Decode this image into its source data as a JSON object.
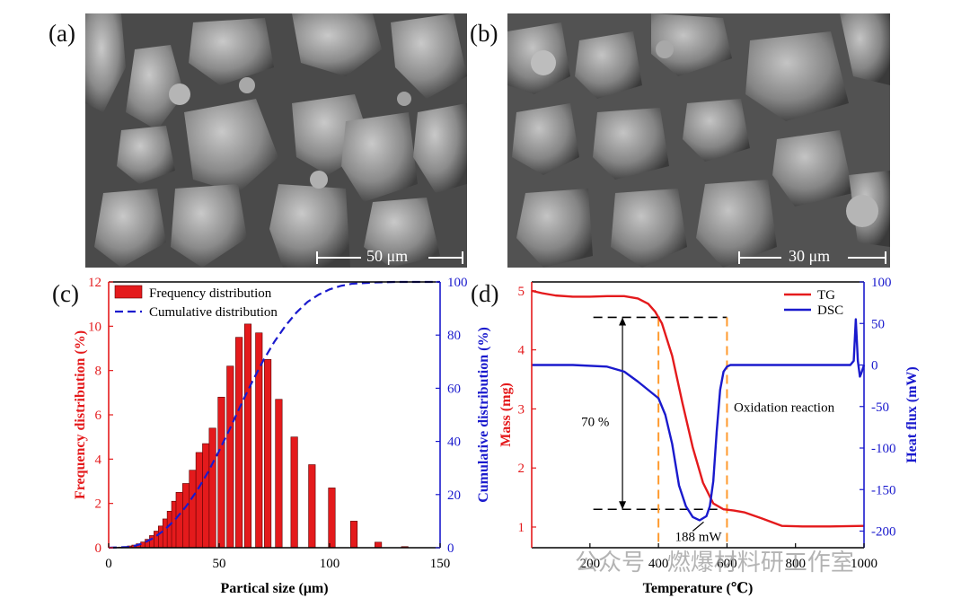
{
  "panels": {
    "a": {
      "label": "(a)",
      "scale_bar": "50 μm"
    },
    "b": {
      "label": "(b)",
      "scale_bar": "30 μm"
    },
    "c": {
      "label": "(c)"
    },
    "d": {
      "label": "(d)"
    }
  },
  "watermark": "公众号 · 燃爆材料研工作室",
  "colors": {
    "red": "#e41a1c",
    "blue": "#1a1acd",
    "orange": "#ff9a2e",
    "black": "#000000"
  },
  "chart_data": [
    {
      "id": "c",
      "type": "bar",
      "xlabel": "Partical size (μm)",
      "ylabel": "Frequency distribution (%)",
      "y2label": "Cumulative distribution (%)",
      "xlim": [
        0,
        150
      ],
      "ylim": [
        0,
        12
      ],
      "y2lim": [
        0,
        100
      ],
      "xticks": [
        0,
        50,
        100,
        150
      ],
      "yticks": [
        0,
        2,
        4,
        6,
        8,
        10,
        12
      ],
      "y2ticks": [
        0,
        20,
        40,
        60,
        80,
        100
      ],
      "legend": [
        "Frequency distribution",
        "Cumulative distribution"
      ],
      "legend_position": "top-left",
      "bars": {
        "name": "Frequency distribution",
        "x": [
          2,
          4,
          6,
          8,
          10,
          12,
          14,
          16,
          18,
          20,
          22,
          24,
          26,
          28,
          30,
          32,
          35,
          38,
          41,
          44,
          47,
          51,
          55,
          59,
          63,
          68,
          72,
          77,
          84,
          92,
          101,
          111,
          122,
          134
        ],
        "values": [
          0.01,
          0.02,
          0.03,
          0.05,
          0.08,
          0.12,
          0.18,
          0.26,
          0.38,
          0.55,
          0.75,
          0.98,
          1.3,
          1.65,
          2.1,
          2.5,
          2.9,
          3.5,
          4.3,
          4.7,
          5.4,
          6.8,
          8.2,
          9.5,
          10.1,
          9.7,
          8.5,
          6.7,
          5.0,
          3.75,
          2.7,
          1.2,
          0.25,
          0.05
        ]
      },
      "cumulative": {
        "name": "Cumulative distribution",
        "x": [
          0,
          10,
          15,
          20,
          25,
          30,
          35,
          40,
          45,
          50,
          55,
          60,
          65,
          70,
          75,
          80,
          85,
          90,
          95,
          100,
          105,
          110,
          120,
          130,
          140,
          150
        ],
        "values": [
          0,
          0.3,
          1.5,
          3.5,
          6.5,
          10.5,
          15.5,
          21.5,
          28.5,
          36.5,
          45,
          54,
          62.5,
          70.5,
          77.5,
          83.5,
          88.5,
          92.5,
          95.2,
          97.2,
          98.5,
          99.3,
          99.8,
          100,
          100,
          100
        ]
      }
    },
    {
      "id": "d",
      "type": "line",
      "xlabel": "Temperature (℃)",
      "ylabel": "Mass (mg)",
      "y2label": "Heat flux (mW)",
      "xlim": [
        30,
        1000
      ],
      "ylim": [
        0.65,
        5.15
      ],
      "y2lim": [
        -220,
        100
      ],
      "xticks": [
        200,
        400,
        600,
        800,
        1000
      ],
      "yticks": [
        1,
        2,
        3,
        4,
        5
      ],
      "y2ticks": [
        -200,
        -150,
        -100,
        -50,
        0,
        50,
        100
      ],
      "legend": [
        "TG",
        "DSC"
      ],
      "legend_position": "top-right",
      "series": [
        {
          "name": "TG",
          "axis": "left",
          "x": [
            30,
            60,
            100,
            150,
            200,
            250,
            300,
            340,
            370,
            390,
            410,
            440,
            470,
            500,
            530,
            560,
            590,
            620,
            650,
            700,
            760,
            820,
            900,
            1000
          ],
          "values": [
            5.0,
            4.96,
            4.92,
            4.9,
            4.9,
            4.91,
            4.91,
            4.87,
            4.78,
            4.65,
            4.45,
            3.9,
            3.1,
            2.35,
            1.75,
            1.4,
            1.3,
            1.28,
            1.25,
            1.15,
            1.02,
            1.01,
            1.01,
            1.02
          ]
        },
        {
          "name": "DSC",
          "axis": "right",
          "x": [
            30,
            150,
            250,
            300,
            340,
            370,
            400,
            420,
            440,
            460,
            480,
            500,
            520,
            540,
            550,
            560,
            570,
            580,
            590,
            600,
            610,
            640,
            700,
            800,
            900,
            960,
            970,
            976,
            982,
            988,
            992,
            1000
          ],
          "values": [
            0,
            0,
            -2,
            -8,
            -20,
            -30,
            -40,
            -60,
            -95,
            -145,
            -170,
            -183,
            -187,
            -182,
            -170,
            -140,
            -80,
            -30,
            -8,
            -2,
            0,
            0,
            0,
            0,
            0,
            0,
            5,
            55,
            5,
            -14,
            -10,
            0
          ]
        }
      ],
      "annotations": {
        "mass_loss": "70 %",
        "reaction": "Oxidation reaction",
        "peak": "188 mW",
        "orange_lines_x": [
          400,
          600
        ]
      }
    }
  ]
}
